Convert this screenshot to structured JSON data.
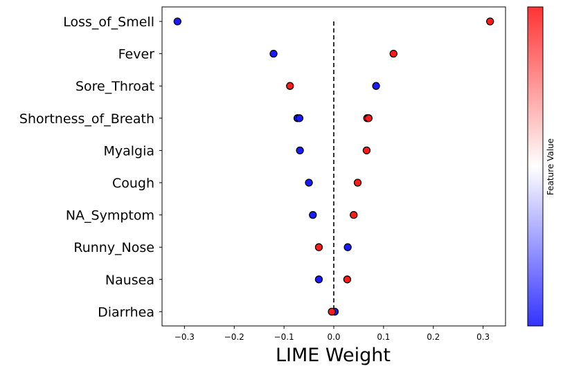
{
  "chart_data": {
    "type": "scatter",
    "title": "",
    "xlabel": "LIME Weight",
    "ylabel": "",
    "xlim": [
      -0.345,
      0.345
    ],
    "x_ticks": [
      -0.3,
      -0.2,
      -0.1,
      0.0,
      0.1,
      0.2,
      0.3
    ],
    "x_tick_labels": [
      "−0.3",
      "−0.2",
      "−0.1",
      "0.0",
      "0.1",
      "0.2",
      "0.3"
    ],
    "grid": false,
    "reference_line": {
      "x": 0.0,
      "style": "dashed"
    },
    "colorbar": {
      "label": "Feature Value",
      "low_color": "#3333ff",
      "mid_color": "#ffffff",
      "high_color": "#ff3333"
    },
    "features": [
      {
        "label": "Loss_of_Smell",
        "points": [
          {
            "x": -0.314,
            "value": "low"
          },
          {
            "x": 0.314,
            "value": "high"
          }
        ]
      },
      {
        "label": "Fever",
        "points": [
          {
            "x": -0.121,
            "value": "low"
          },
          {
            "x": 0.12,
            "value": "high"
          }
        ]
      },
      {
        "label": "Sore_Throat",
        "points": [
          {
            "x": -0.088,
            "value": "high"
          },
          {
            "x": 0.085,
            "value": "low"
          }
        ]
      },
      {
        "label": "Shortness_of_Breath",
        "points": [
          {
            "x": -0.073,
            "value": "low"
          },
          {
            "x": -0.069,
            "value": "low"
          },
          {
            "x": 0.067,
            "value": "high"
          },
          {
            "x": 0.07,
            "value": "high"
          }
        ]
      },
      {
        "label": "Myalgia",
        "points": [
          {
            "x": -0.068,
            "value": "low"
          },
          {
            "x": 0.066,
            "value": "high"
          }
        ]
      },
      {
        "label": "Cough",
        "points": [
          {
            "x": -0.05,
            "value": "low"
          },
          {
            "x": 0.048,
            "value": "high"
          }
        ]
      },
      {
        "label": "NA_Symptom",
        "points": [
          {
            "x": -0.042,
            "value": "low"
          },
          {
            "x": 0.04,
            "value": "high"
          }
        ]
      },
      {
        "label": "Runny_Nose",
        "points": [
          {
            "x": -0.03,
            "value": "high"
          },
          {
            "x": 0.028,
            "value": "low"
          }
        ]
      },
      {
        "label": "Nausea",
        "points": [
          {
            "x": -0.03,
            "value": "low"
          },
          {
            "x": 0.027,
            "value": "high"
          }
        ]
      },
      {
        "label": "Diarrhea",
        "points": [
          {
            "x": 0.002,
            "value": "low"
          },
          {
            "x": -0.004,
            "value": "high"
          }
        ]
      }
    ]
  }
}
